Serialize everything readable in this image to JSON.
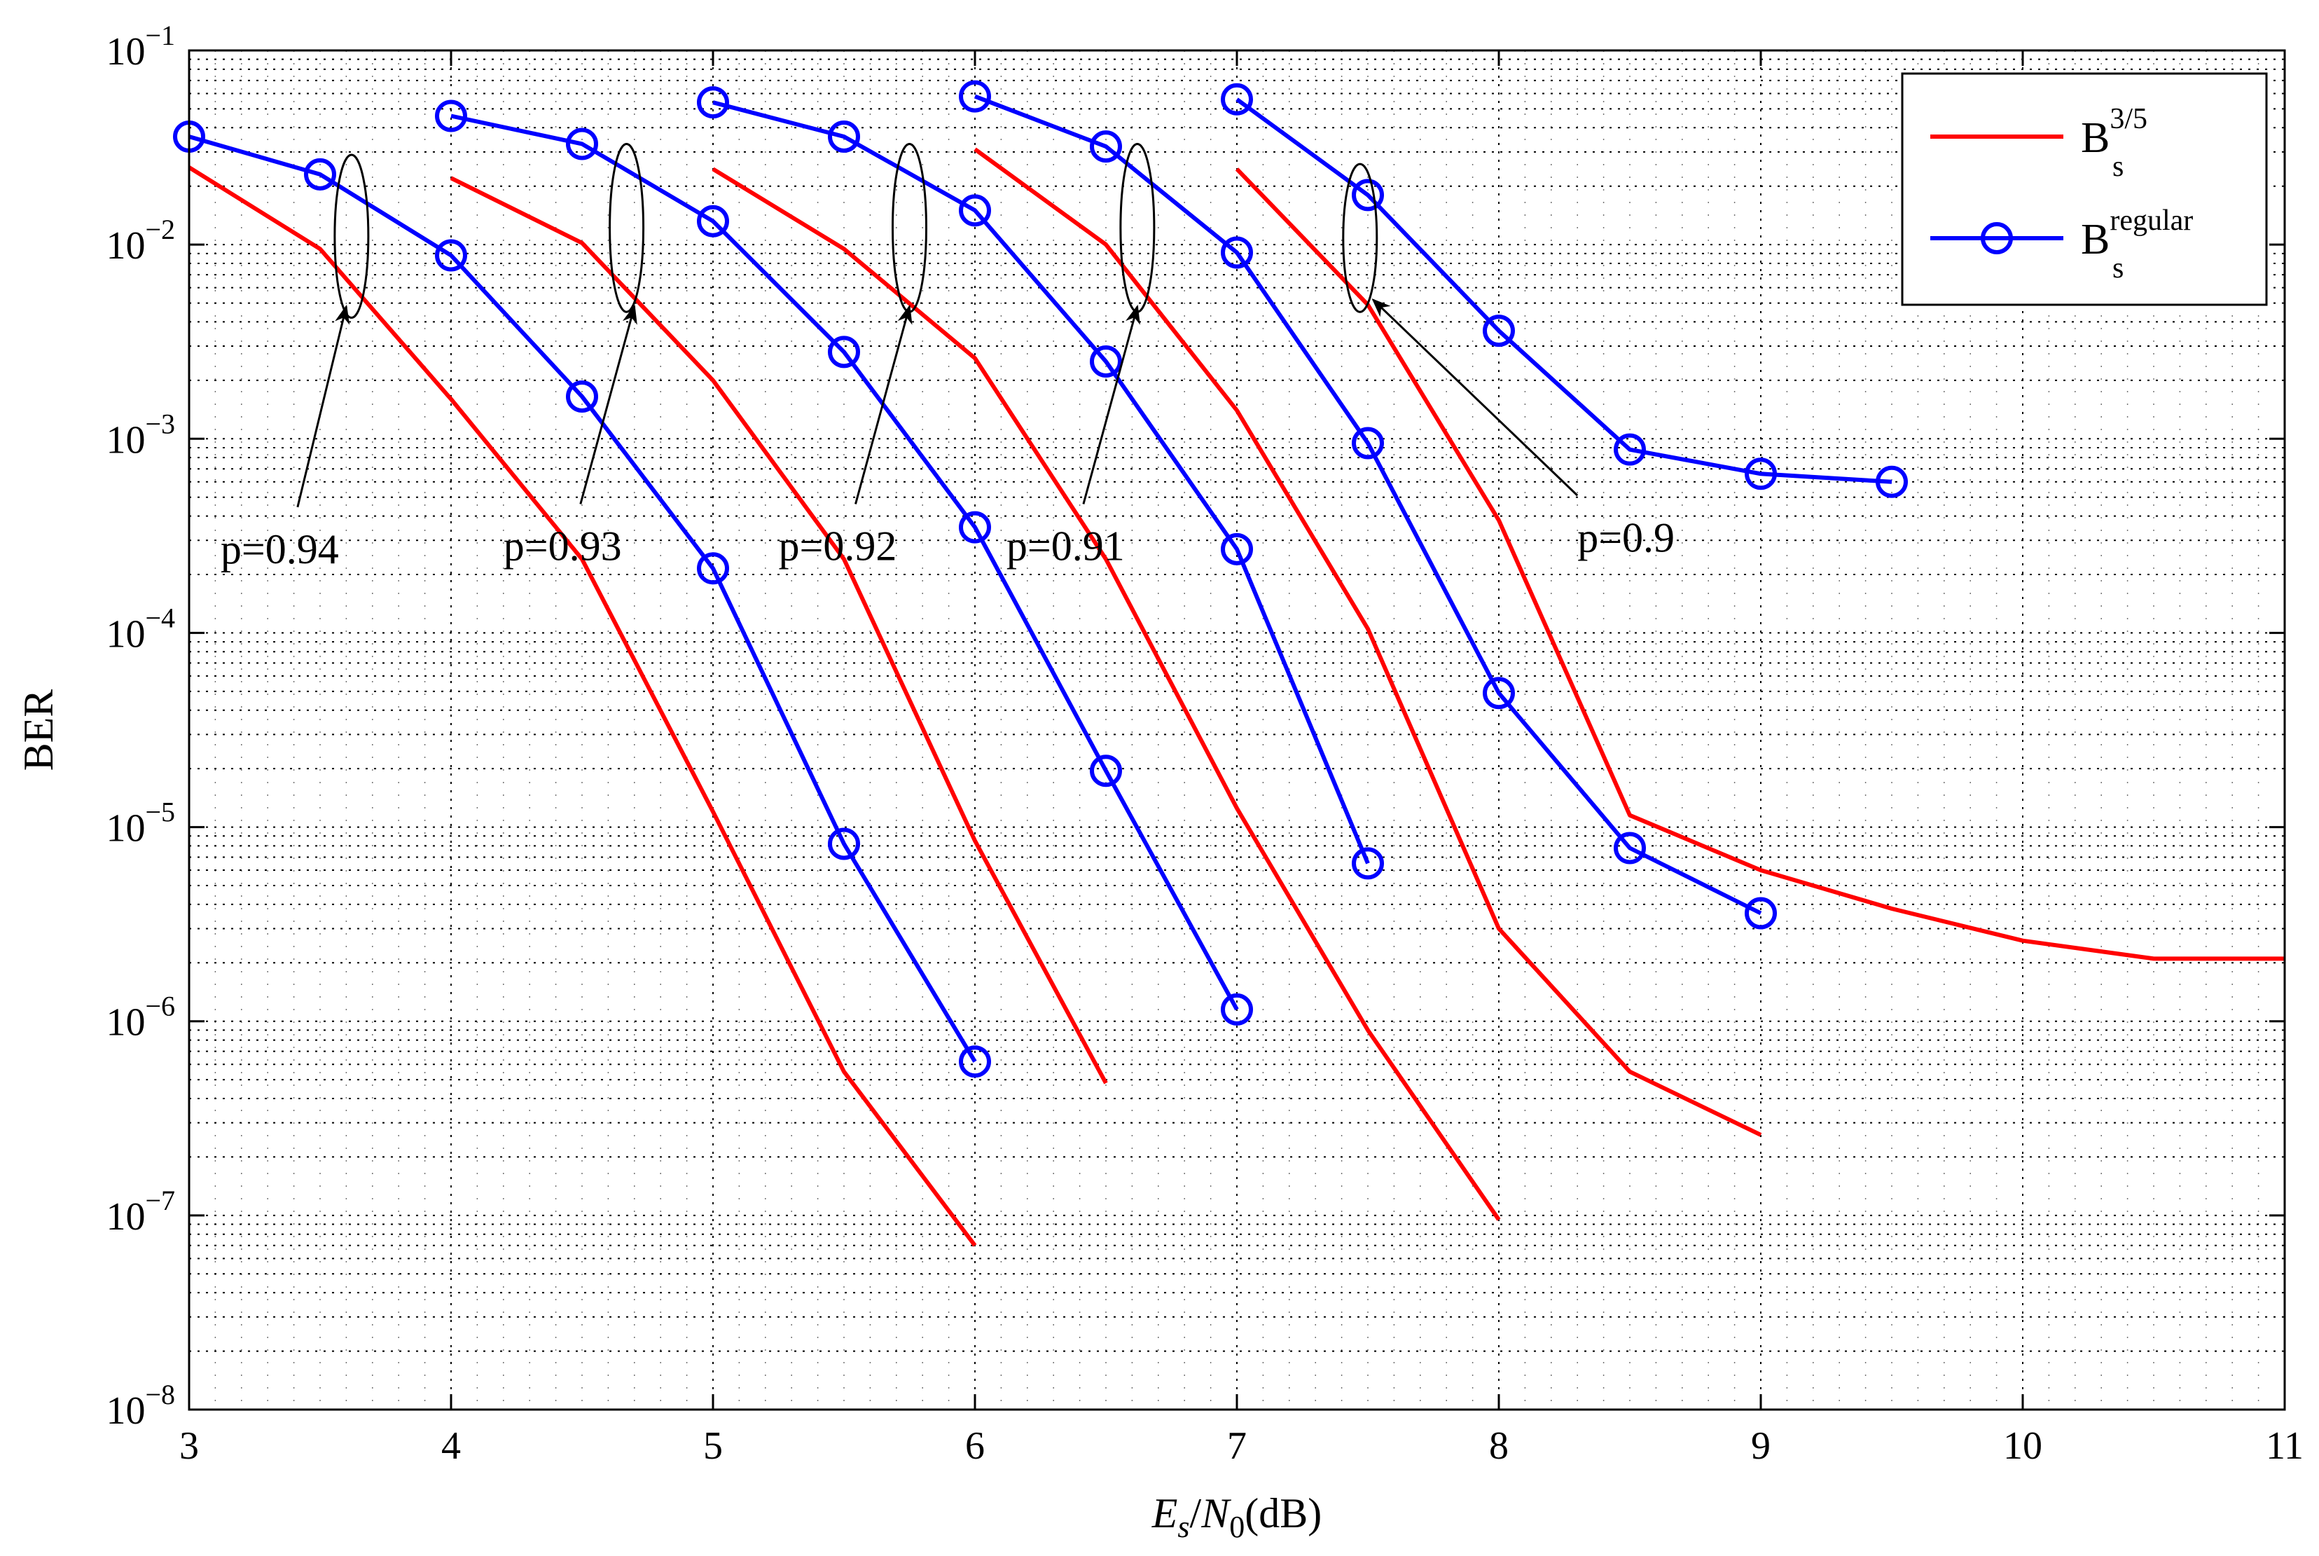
{
  "chart_data": {
    "type": "line",
    "title": "",
    "xlabel": {
      "var": "E",
      "var_sub": "s",
      "sep": "/",
      "var2": "N",
      "var2_sub": "0",
      "unit": "(dB)"
    },
    "ylabel": "BER",
    "xlim": [
      3,
      11
    ],
    "ylim_log10": [
      -8,
      -1
    ],
    "yscale": "log",
    "grid": true,
    "x_ticks": [
      "3",
      "4",
      "5",
      "6",
      "7",
      "8",
      "9",
      "10",
      "11"
    ],
    "y_ticks": [
      {
        "exp": -1,
        "base": "10",
        "sup": "−1"
      },
      {
        "exp": -2,
        "base": "10",
        "sup": "−2"
      },
      {
        "exp": -3,
        "base": "10",
        "sup": "−3"
      },
      {
        "exp": -4,
        "base": "10",
        "sup": "−4"
      },
      {
        "exp": -5,
        "base": "10",
        "sup": "−5"
      },
      {
        "exp": -6,
        "base": "10",
        "sup": "−6"
      },
      {
        "exp": -7,
        "base": "10",
        "sup": "−7"
      },
      {
        "exp": -8,
        "base": "10",
        "sup": "−8"
      }
    ],
    "legend": {
      "position": "top-right",
      "entries": [
        {
          "key": "b35",
          "base": "B",
          "sub": "s",
          "sup": "3/5",
          "color": "#ff0000"
        },
        {
          "key": "regular",
          "base": "B",
          "sub": "s",
          "sup": "regular",
          "color": "#0000ff",
          "marker": "circle"
        }
      ]
    },
    "series": [
      {
        "name": "B_s^3/5 p=0.94",
        "group": "b35",
        "x": [
          3,
          3.5,
          4,
          4.5,
          5,
          5.5,
          6
        ],
        "y": [
          0.025,
          0.0095,
          0.0016,
          0.00024,
          1.2e-05,
          5.5e-07,
          7e-08
        ]
      },
      {
        "name": "B_s^regular p=0.94",
        "group": "regular",
        "x": [
          3,
          3.5,
          4,
          4.5,
          5,
          5.5,
          6
        ],
        "y": [
          0.036,
          0.023,
          0.0088,
          0.00165,
          0.000215,
          8.2e-06,
          6.2e-07
        ]
      },
      {
        "name": "B_s^3/5 p=0.93",
        "group": "b35",
        "x": [
          4,
          4.5,
          5,
          5.5,
          6,
          6.5
        ],
        "y": [
          0.022,
          0.0102,
          0.002,
          0.00024,
          8.5e-06,
          4.8e-07
        ]
      },
      {
        "name": "B_s^regular p=0.93",
        "group": "regular",
        "x": [
          4,
          4.5,
          5,
          5.5,
          6,
          6.5,
          7
        ],
        "y": [
          0.046,
          0.033,
          0.0132,
          0.0028,
          0.00035,
          1.95e-05,
          1.15e-06
        ]
      },
      {
        "name": "B_s^3/5 p=0.92",
        "group": "b35",
        "x": [
          5,
          5.5,
          6,
          6.5,
          7,
          7.5,
          8
        ],
        "y": [
          0.0245,
          0.0095,
          0.0026,
          0.00024,
          1.25e-05,
          9e-07,
          9.5e-08
        ]
      },
      {
        "name": "B_s^regular p=0.92",
        "group": "regular",
        "x": [
          5,
          5.5,
          6,
          6.5,
          7,
          7.5
        ],
        "y": [
          0.054,
          0.036,
          0.015,
          0.0025,
          0.00027,
          6.5e-06
        ]
      },
      {
        "name": "B_s^3/5 p=0.91",
        "group": "b35",
        "x": [
          6,
          6.5,
          7,
          7.5,
          8,
          8.5,
          9
        ],
        "y": [
          0.031,
          0.01,
          0.0014,
          0.000105,
          3e-06,
          5.5e-07,
          2.6e-07
        ]
      },
      {
        "name": "B_s^regular p=0.91",
        "group": "regular",
        "x": [
          6,
          6.5,
          7,
          7.5,
          8,
          8.5,
          9
        ],
        "y": [
          0.058,
          0.032,
          0.0091,
          0.00095,
          4.9e-05,
          7.8e-06,
          3.6e-06
        ]
      },
      {
        "name": "B_s^3/5 p=0.9",
        "group": "b35",
        "x": [
          7,
          7.5,
          8,
          8.5,
          9,
          9.5,
          10,
          10.5,
          11
        ],
        "y": [
          0.0245,
          0.0049,
          0.00038,
          1.15e-05,
          6e-06,
          3.8e-06,
          2.6e-06,
          2.1e-06,
          2.1e-06
        ]
      },
      {
        "name": "B_s^regular p=0.9",
        "group": "regular",
        "x": [
          7,
          7.5,
          8,
          8.5,
          9,
          9.5
        ],
        "y": [
          0.056,
          0.018,
          0.0036,
          0.00088,
          0.00066,
          0.0006
        ]
      }
    ],
    "annotations": [
      {
        "text": "p=0.94",
        "tx": 3.12,
        "ty": 0.00027,
        "ax": 3.6,
        "ay": 0.0048,
        "ellipse": {
          "x": 3.62,
          "y_top": 0.029,
          "y_bot": 0.0042
        }
      },
      {
        "text": "p=0.93",
        "tx": 4.2,
        "ty": 0.00028,
        "ax": 4.7,
        "ay": 0.0048,
        "ellipse": {
          "x": 4.67,
          "y_top": 0.033,
          "y_bot": 0.0045
        }
      },
      {
        "text": "p=0.92",
        "tx": 5.25,
        "ty": 0.00028,
        "ax": 5.75,
        "ay": 0.0048,
        "ellipse": {
          "x": 5.75,
          "y_top": 0.033,
          "y_bot": 0.0045
        }
      },
      {
        "text": "p=0.91",
        "tx": 6.12,
        "ty": 0.00028,
        "ax": 6.62,
        "ay": 0.0048,
        "ellipse": {
          "x": 6.62,
          "y_top": 0.033,
          "y_bot": 0.0045
        }
      },
      {
        "text": "p=0.9",
        "tx": 8.3,
        "ty": 0.00031,
        "ax": 7.52,
        "ay": 0.0052,
        "ellipse": {
          "x": 7.47,
          "y_top": 0.026,
          "y_bot": 0.0045
        }
      }
    ]
  }
}
